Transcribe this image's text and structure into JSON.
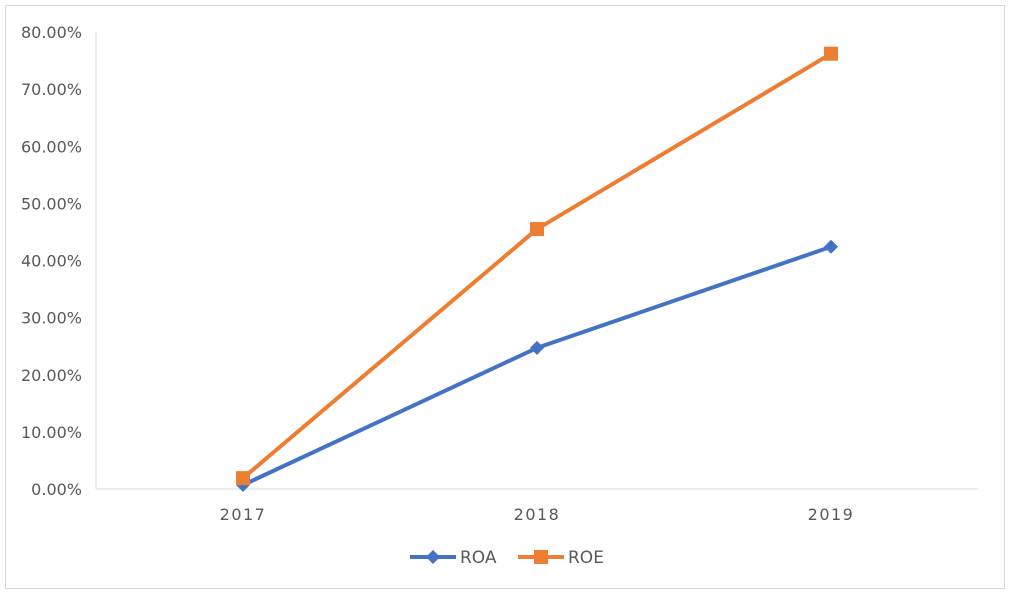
{
  "chart_data": {
    "type": "line",
    "title": "",
    "xlabel": "",
    "ylabel": "",
    "categories": [
      "2017",
      "2018",
      "2019"
    ],
    "ylim": [
      0,
      0.8
    ],
    "yticks": [
      "0.00%",
      "10.00%",
      "20.00%",
      "30.00%",
      "40.00%",
      "50.00%",
      "60.00%",
      "70.00%",
      "80.00%"
    ],
    "grid": false,
    "legend": "bottom",
    "series": [
      {
        "name": "ROA",
        "values": [
          0.007,
          0.247,
          0.424
        ],
        "color": "#4472c4",
        "marker": "diamond"
      },
      {
        "name": "ROE",
        "values": [
          0.019,
          0.455,
          0.762
        ],
        "color": "#ed7d31",
        "marker": "square"
      }
    ]
  }
}
